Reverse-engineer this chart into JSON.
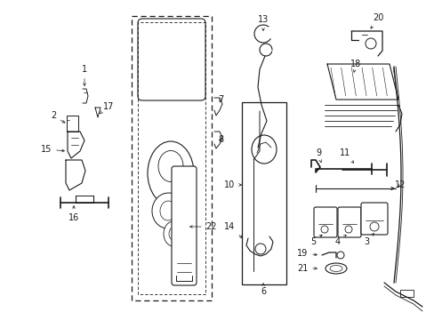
{
  "background_color": "#ffffff",
  "line_color": "#1a1a1a",
  "figsize": [
    4.89,
    3.6
  ],
  "dpi": 100,
  "label_fontsize": 7.0
}
